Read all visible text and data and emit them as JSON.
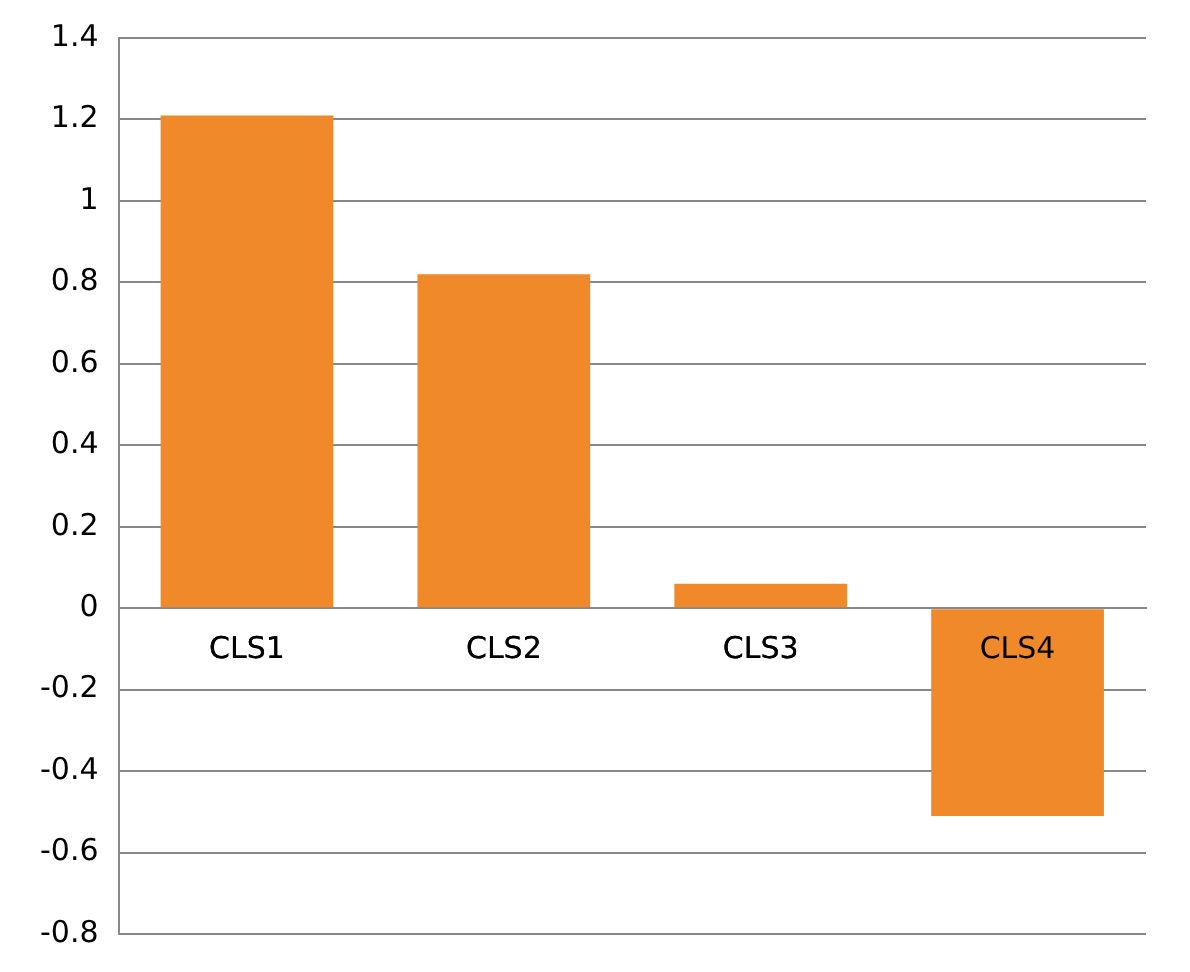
{
  "chart_data": {
    "type": "bar",
    "categories": [
      "CLS1",
      "CLS2",
      "CLS3",
      "CLS4"
    ],
    "values": [
      1.21,
      0.82,
      0.06,
      -0.51
    ],
    "color": "#f0892a",
    "ylim": [
      -0.8,
      1.4
    ],
    "yticks": [
      -0.8,
      -0.6,
      -0.4,
      -0.2,
      0,
      0.2,
      0.4,
      0.6,
      0.8,
      1,
      1.2,
      1.4
    ],
    "grid": "y",
    "legend": false
  }
}
